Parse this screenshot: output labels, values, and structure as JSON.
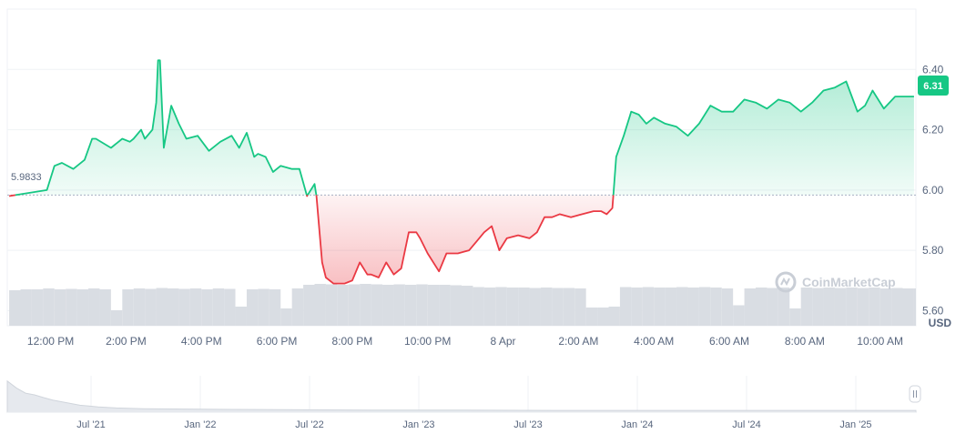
{
  "colors": {
    "up": "#16c784",
    "down": "#ea3943",
    "axis_text": "#58667e",
    "grid": "#eff2f5",
    "volume": "#d9dde3",
    "baseline": "#a6b0c3"
  },
  "watermark": "CoinMarketCap",
  "currency_label": "USD",
  "baseline_label": "5.9833",
  "current_price_label": "6.31",
  "chart_data": {
    "type": "area",
    "title": "",
    "xlabel": "",
    "ylabel": "",
    "baseline": 5.9833,
    "current": 6.31,
    "ylim": [
      5.55,
      6.6
    ],
    "yticks": [
      5.6,
      5.8,
      6.0,
      6.2,
      6.4
    ],
    "ytick_labels": [
      "5.60",
      "5.80",
      "6.00",
      "6.20",
      "6.40"
    ],
    "xlim": [
      10.85,
      34.95
    ],
    "xticks": [
      12,
      14,
      16,
      18,
      20,
      22,
      24,
      26,
      28,
      30,
      32,
      34
    ],
    "xtick_labels": [
      "12:00 PM",
      "2:00 PM",
      "4:00 PM",
      "6:00 PM",
      "8:00 PM",
      "10:00 PM",
      "8 Apr",
      "2:00 AM",
      "4:00 AM",
      "6:00 AM",
      "8:00 AM",
      "10:00 AM"
    ],
    "grid": true,
    "price": {
      "x": [
        10.9,
        11.9,
        12.1,
        12.3,
        12.6,
        12.9,
        13.1,
        13.2,
        13.6,
        13.9,
        14.1,
        14.2,
        14.4,
        14.5,
        14.7,
        14.8,
        14.85,
        14.9,
        15.0,
        15.2,
        15.4,
        15.6,
        15.9,
        16.2,
        16.5,
        16.8,
        17.0,
        17.2,
        17.4,
        17.5,
        17.7,
        17.9,
        18.1,
        18.4,
        18.6,
        18.8,
        19.0,
        19.05,
        19.2,
        19.3,
        19.5,
        19.8,
        20.0,
        20.2,
        20.4,
        20.5,
        20.7,
        20.9,
        21.1,
        21.3,
        21.5,
        21.7,
        21.8,
        22.0,
        22.3,
        22.5,
        22.8,
        23.1,
        23.3,
        23.5,
        23.7,
        23.9,
        24.1,
        24.4,
        24.7,
        24.9,
        25.1,
        25.3,
        25.5,
        25.8,
        26.1,
        26.4,
        26.6,
        26.75,
        26.9,
        27.0,
        27.2,
        27.4,
        27.6,
        27.8,
        28.0,
        28.3,
        28.6,
        28.9,
        29.2,
        29.5,
        29.8,
        30.1,
        30.4,
        30.7,
        31.0,
        31.3,
        31.6,
        31.9,
        32.2,
        32.5,
        32.8,
        33.1,
        33.4,
        33.6,
        33.8,
        34.1,
        34.4,
        34.7,
        34.9
      ],
      "y": [
        5.98,
        6.0,
        6.08,
        6.09,
        6.07,
        6.1,
        6.17,
        6.17,
        6.14,
        6.17,
        6.16,
        6.17,
        6.2,
        6.17,
        6.2,
        6.29,
        6.43,
        6.43,
        6.14,
        6.28,
        6.22,
        6.17,
        6.18,
        6.13,
        6.16,
        6.18,
        6.14,
        6.19,
        6.11,
        6.12,
        6.11,
        6.06,
        6.08,
        6.07,
        6.07,
        5.98,
        6.02,
        5.98,
        5.76,
        5.71,
        5.69,
        5.69,
        5.7,
        5.76,
        5.72,
        5.72,
        5.71,
        5.76,
        5.72,
        5.74,
        5.86,
        5.86,
        5.84,
        5.79,
        5.73,
        5.79,
        5.79,
        5.8,
        5.83,
        5.86,
        5.88,
        5.8,
        5.84,
        5.85,
        5.84,
        5.86,
        5.91,
        5.91,
        5.92,
        5.91,
        5.92,
        5.93,
        5.93,
        5.92,
        5.94,
        6.11,
        6.18,
        6.26,
        6.25,
        6.22,
        6.24,
        6.22,
        6.21,
        6.18,
        6.22,
        6.28,
        6.26,
        6.26,
        6.3,
        6.29,
        6.27,
        6.3,
        6.29,
        6.26,
        6.29,
        6.33,
        6.34,
        6.36,
        6.26,
        6.28,
        6.33,
        6.27,
        6.31,
        6.31,
        6.31
      ]
    },
    "volume": {
      "x": [
        10.9,
        11.2,
        11.5,
        11.8,
        12.1,
        12.4,
        12.7,
        13.0,
        13.3,
        13.6,
        13.9,
        14.2,
        14.5,
        14.8,
        15.1,
        15.4,
        15.7,
        16.0,
        16.3,
        16.6,
        16.9,
        17.2,
        17.5,
        17.8,
        18.1,
        18.4,
        18.7,
        19.0,
        19.3,
        19.6,
        19.9,
        20.2,
        20.5,
        20.8,
        21.1,
        21.4,
        21.7,
        22.0,
        22.3,
        22.6,
        22.9,
        23.2,
        23.5,
        23.8,
        24.1,
        24.4,
        24.7,
        25.0,
        25.3,
        25.6,
        25.9,
        26.2,
        26.5,
        26.8,
        27.1,
        27.4,
        27.7,
        28.0,
        28.3,
        28.6,
        28.9,
        29.2,
        29.5,
        29.8,
        30.1,
        30.4,
        30.7,
        31.0,
        31.3,
        31.6,
        31.9,
        32.2,
        32.5,
        32.8,
        33.1,
        33.4,
        33.7,
        34.0,
        34.3,
        34.6,
        34.9
      ],
      "values": [
        0.78,
        0.8,
        0.8,
        0.82,
        0.8,
        0.81,
        0.8,
        0.82,
        0.8,
        0.34,
        0.8,
        0.82,
        0.81,
        0.83,
        0.82,
        0.81,
        0.82,
        0.8,
        0.82,
        0.81,
        0.42,
        0.8,
        0.81,
        0.8,
        0.38,
        0.82,
        0.9,
        0.92,
        0.91,
        0.9,
        0.91,
        0.92,
        0.91,
        0.9,
        0.91,
        0.9,
        0.91,
        0.9,
        0.9,
        0.89,
        0.88,
        0.85,
        0.84,
        0.85,
        0.84,
        0.84,
        0.83,
        0.84,
        0.83,
        0.83,
        0.82,
        0.4,
        0.4,
        0.42,
        0.85,
        0.84,
        0.85,
        0.84,
        0.84,
        0.85,
        0.84,
        0.85,
        0.84,
        0.82,
        0.45,
        0.82,
        0.84,
        0.83,
        0.84,
        0.38,
        0.84,
        0.83,
        0.84,
        0.83,
        0.84,
        0.83,
        0.84,
        0.82,
        0.83,
        0.82,
        0.82
      ]
    },
    "navigator": {
      "xtick_labels": [
        "Jul '21",
        "Jan '22",
        "Jul '22",
        "Jan '23",
        "Jul '23",
        "Jan '24",
        "Jul '24",
        "Jan '25"
      ],
      "x": [
        0,
        0.01,
        0.02,
        0.03,
        0.04,
        0.05,
        0.06,
        0.07,
        0.08,
        0.09,
        0.1,
        0.12,
        0.15,
        0.2,
        0.25,
        0.3,
        0.4,
        0.5,
        0.6,
        0.7,
        0.8,
        0.9,
        1.0
      ],
      "values": [
        0.9,
        0.7,
        0.55,
        0.5,
        0.42,
        0.35,
        0.3,
        0.25,
        0.2,
        0.18,
        0.15,
        0.12,
        0.1,
        0.09,
        0.08,
        0.07,
        0.06,
        0.06,
        0.05,
        0.05,
        0.05,
        0.05,
        0.05
      ]
    }
  }
}
